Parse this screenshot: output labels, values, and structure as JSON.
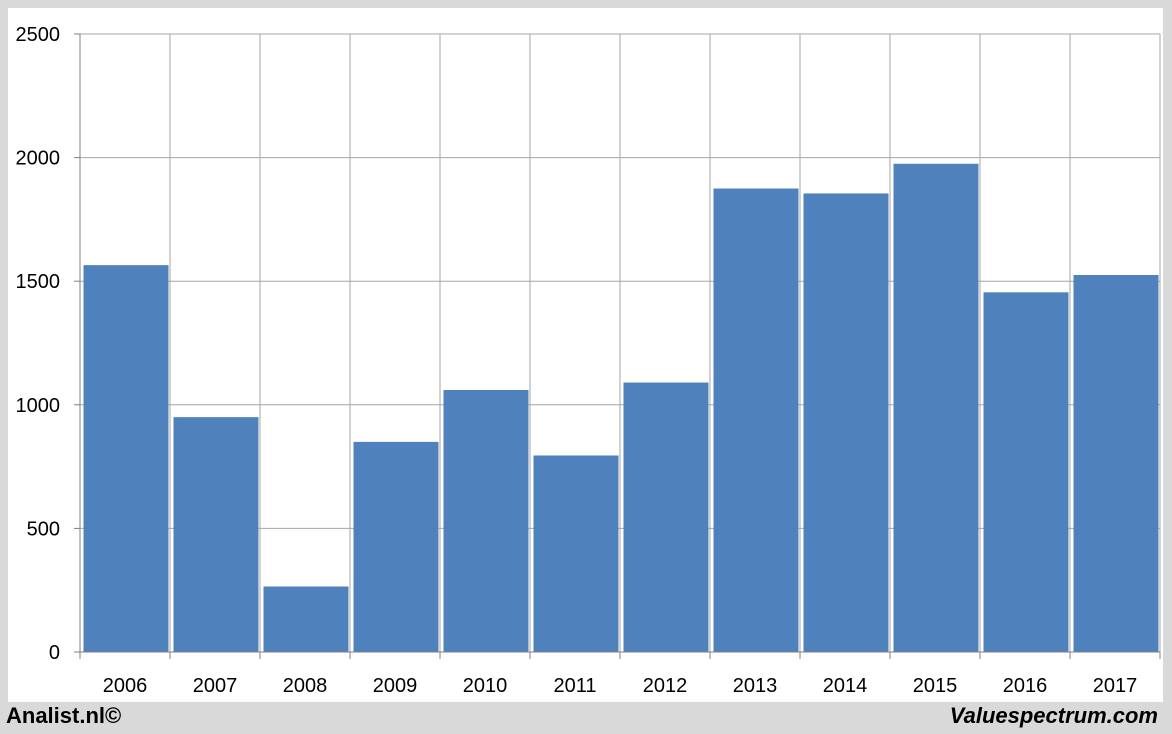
{
  "chart_data": {
    "type": "bar",
    "categories": [
      "2006",
      "2007",
      "2008",
      "2009",
      "2010",
      "2011",
      "2012",
      "2013",
      "2014",
      "2015",
      "2016",
      "2017"
    ],
    "values": [
      1565,
      950,
      265,
      850,
      1060,
      795,
      1090,
      1875,
      1855,
      1975,
      1455,
      1525
    ],
    "y_ticks": [
      "0",
      "500",
      "1000",
      "1500",
      "2000",
      "2500"
    ],
    "ylim": [
      0,
      2500
    ],
    "grid": true,
    "bar_color": "#4f81bd",
    "grid_color": "#a6a6a6"
  },
  "footer": {
    "left": "Analist.nl©",
    "right": "Valuespectrum.com"
  }
}
